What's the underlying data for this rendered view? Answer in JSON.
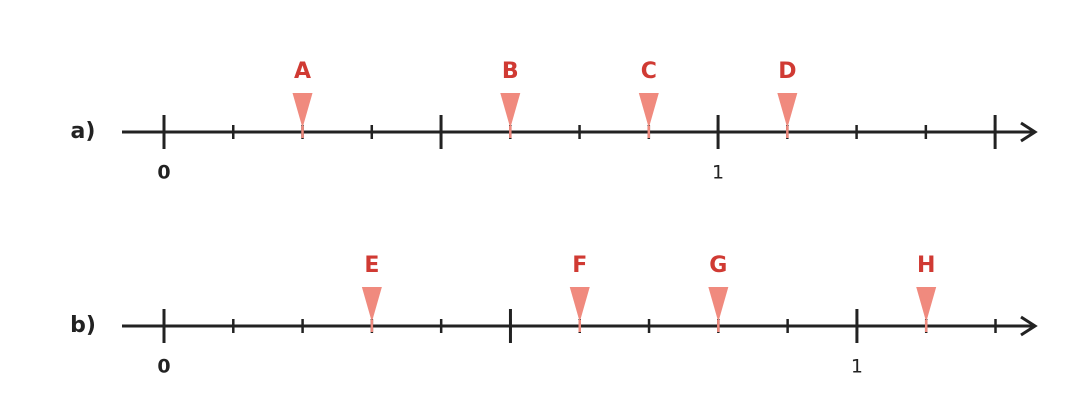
{
  "number_lines": [
    {
      "label": "a)",
      "xlim": [
        0,
        1.572
      ],
      "ticks": [
        0,
        0.125,
        0.25,
        0.375,
        0.5,
        0.625,
        0.75,
        0.875,
        1,
        1.125,
        1.25,
        1.375,
        1.5
      ],
      "major_ticks": [
        0,
        0.5,
        1,
        1.5
      ],
      "tick_labels": [
        {
          "value": 0,
          "label": "0"
        },
        {
          "value": 1,
          "label": "1"
        }
      ],
      "markers": [
        {
          "label": "A",
          "value": 0.25
        },
        {
          "label": "B",
          "value": 0.625
        },
        {
          "label": "C",
          "value": 0.875
        },
        {
          "label": "D",
          "value": 1.125
        }
      ]
    },
    {
      "label": "b)",
      "xlim": [
        0,
        1.257
      ],
      "ticks": [
        0,
        0.1,
        0.2,
        0.3,
        0.4,
        0.5,
        0.6,
        0.7,
        0.8,
        0.9,
        1,
        1.1,
        1.2
      ],
      "major_ticks": [
        0,
        0.5,
        1
      ],
      "tick_labels": [
        {
          "value": 0,
          "label": "0"
        },
        {
          "value": 1,
          "label": "1"
        }
      ],
      "markers": [
        {
          "label": "E",
          "value": 0.3
        },
        {
          "label": "F",
          "value": 0.6
        },
        {
          "label": "G",
          "value": 0.8
        },
        {
          "label": "H",
          "value": 1.1
        }
      ]
    }
  ]
}
